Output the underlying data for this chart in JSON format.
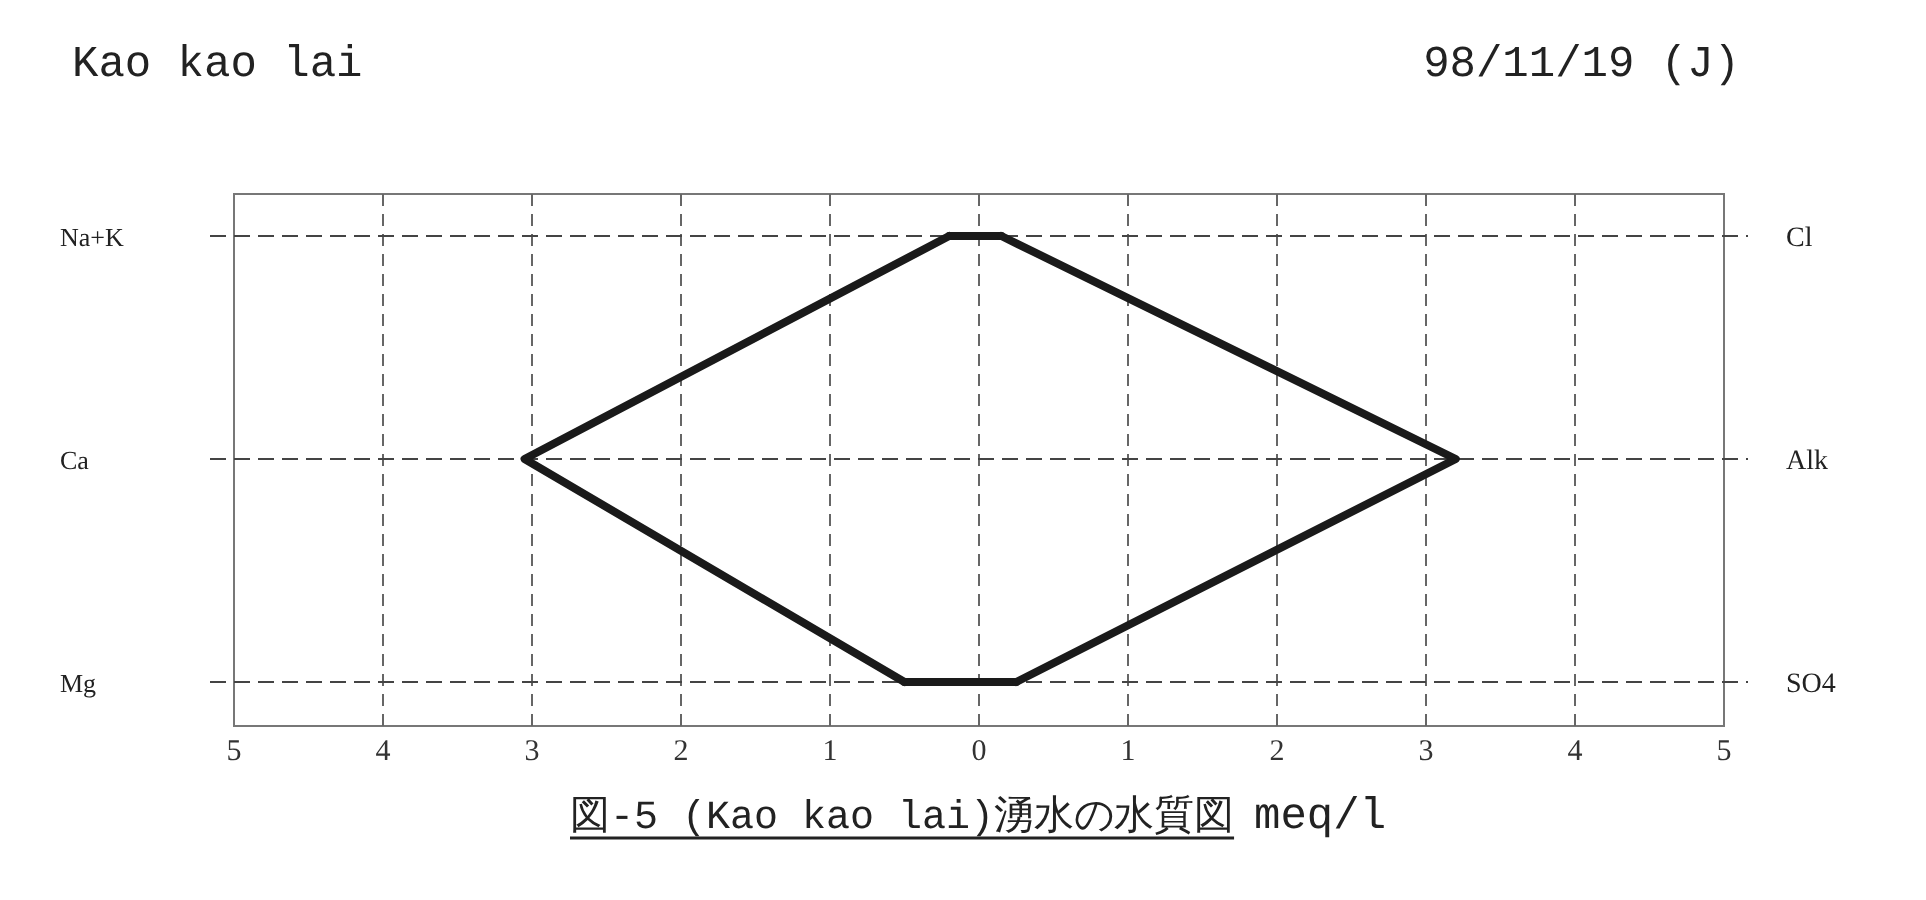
{
  "chart_data": {
    "type": "line",
    "orientation": "horizontal",
    "title": "Kao kao lai",
    "subtitle": "98/11/19 (J)",
    "xlabel": "meq/l",
    "categories": [
      "Na+K",
      "Ca",
      "Mg"
    ],
    "y2_categories": [
      "Cl",
      "Alk",
      "SO4"
    ],
    "series": [
      {
        "color": "#1a1a1a",
        "values": [
          -0.2,
          -3.05,
          -0.5
        ]
      },
      {
        "color": "#1a1a1a",
        "values": [
          0.15,
          3.2,
          0.25
        ]
      }
    ],
    "xlim": [
      -5,
      5
    ],
    "xticks": [
      {
        "value": -5,
        "label": "5"
      },
      {
        "value": -4,
        "label": "4"
      },
      {
        "value": -3,
        "label": "3"
      },
      {
        "value": -2,
        "label": "2"
      },
      {
        "value": -1,
        "label": "1"
      },
      0,
      1,
      2,
      3,
      4,
      5
    ],
    "grid": true,
    "line_style": "solid",
    "annotations": [
      "図-5 (Kao kao lai)湧水の水質図"
    ]
  }
}
